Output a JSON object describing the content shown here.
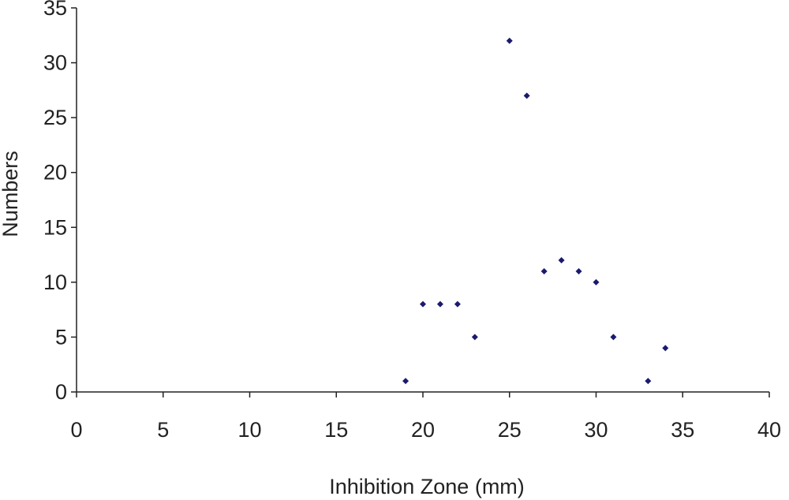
{
  "chart_data": {
    "type": "scatter",
    "title": "",
    "xlabel": "Inhibition Zone (mm)",
    "ylabel": "Numbers",
    "xlim": [
      0,
      40
    ],
    "ylim": [
      0,
      35
    ],
    "xticks": [
      0,
      5,
      10,
      15,
      20,
      25,
      30,
      35,
      40
    ],
    "yticks": [
      0,
      5,
      10,
      15,
      20,
      25,
      30,
      35
    ],
    "grid": false,
    "legend": "none",
    "marker": "diamond",
    "marker_color": "#1a1a6e",
    "axis_color": "#222222",
    "x": [
      19,
      20,
      21,
      22,
      23,
      25,
      26,
      27,
      28,
      29,
      30,
      31,
      33,
      34
    ],
    "y": [
      1,
      8,
      8,
      8,
      5,
      32,
      27,
      11,
      12,
      11,
      10,
      5,
      1,
      4
    ]
  }
}
